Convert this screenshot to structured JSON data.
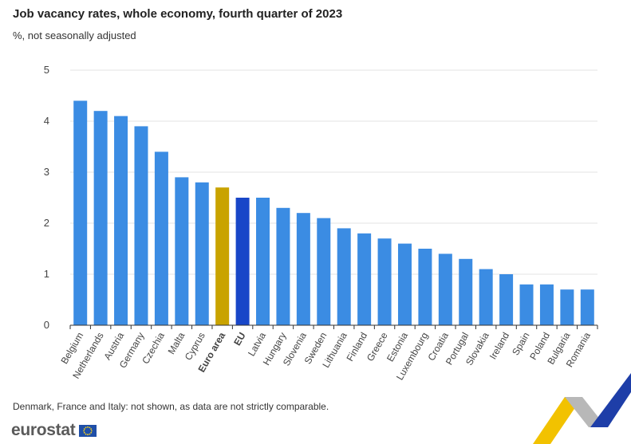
{
  "header": {
    "title": "Job vacancy rates, whole economy, fourth quarter of 2023",
    "subtitle": "%, not seasonally adjusted"
  },
  "footer": {
    "note": "Denmark, France and Italy: not shown, as data are not strictly comparable.",
    "brand": "eurostat",
    "flag_icon": "eu-flag-icon"
  },
  "colors": {
    "country": "#3b8ce3",
    "euro_area": "#c9a300",
    "eu": "#1846c8",
    "grid": "#e3e3e3",
    "axis": "#333333"
  },
  "chart_data": {
    "type": "bar",
    "title": "Job vacancy rates, whole economy, fourth quarter of 2023",
    "subtitle": "%, not seasonally adjusted",
    "xlabel": "",
    "ylabel": "",
    "ylim": [
      0,
      5
    ],
    "yticks": [
      0,
      1,
      2,
      3,
      4,
      5
    ],
    "grid": true,
    "categories": [
      "Belgium",
      "Netherlands",
      "Austria",
      "Germany",
      "Czechia",
      "Malta",
      "Cyprus",
      "Euro area",
      "EU",
      "Latvia",
      "Hungary",
      "Slovenia",
      "Sweden",
      "Lithuania",
      "Finland",
      "Greece",
      "Estonia",
      "Luxembourg",
      "Croatia",
      "Portugal",
      "Slovakia",
      "Ireland",
      "Spain",
      "Poland",
      "Bulgaria",
      "Romania"
    ],
    "values": [
      4.4,
      4.2,
      4.1,
      3.9,
      3.4,
      2.9,
      2.8,
      2.7,
      2.5,
      2.5,
      2.3,
      2.2,
      2.1,
      1.9,
      1.8,
      1.7,
      1.6,
      1.5,
      1.4,
      1.3,
      1.1,
      1.0,
      0.8,
      0.8,
      0.7,
      0.7
    ],
    "highlight": {
      "Euro area": "euro_area",
      "EU": "eu"
    },
    "bold_labels": [
      "Euro area",
      "EU"
    ]
  }
}
